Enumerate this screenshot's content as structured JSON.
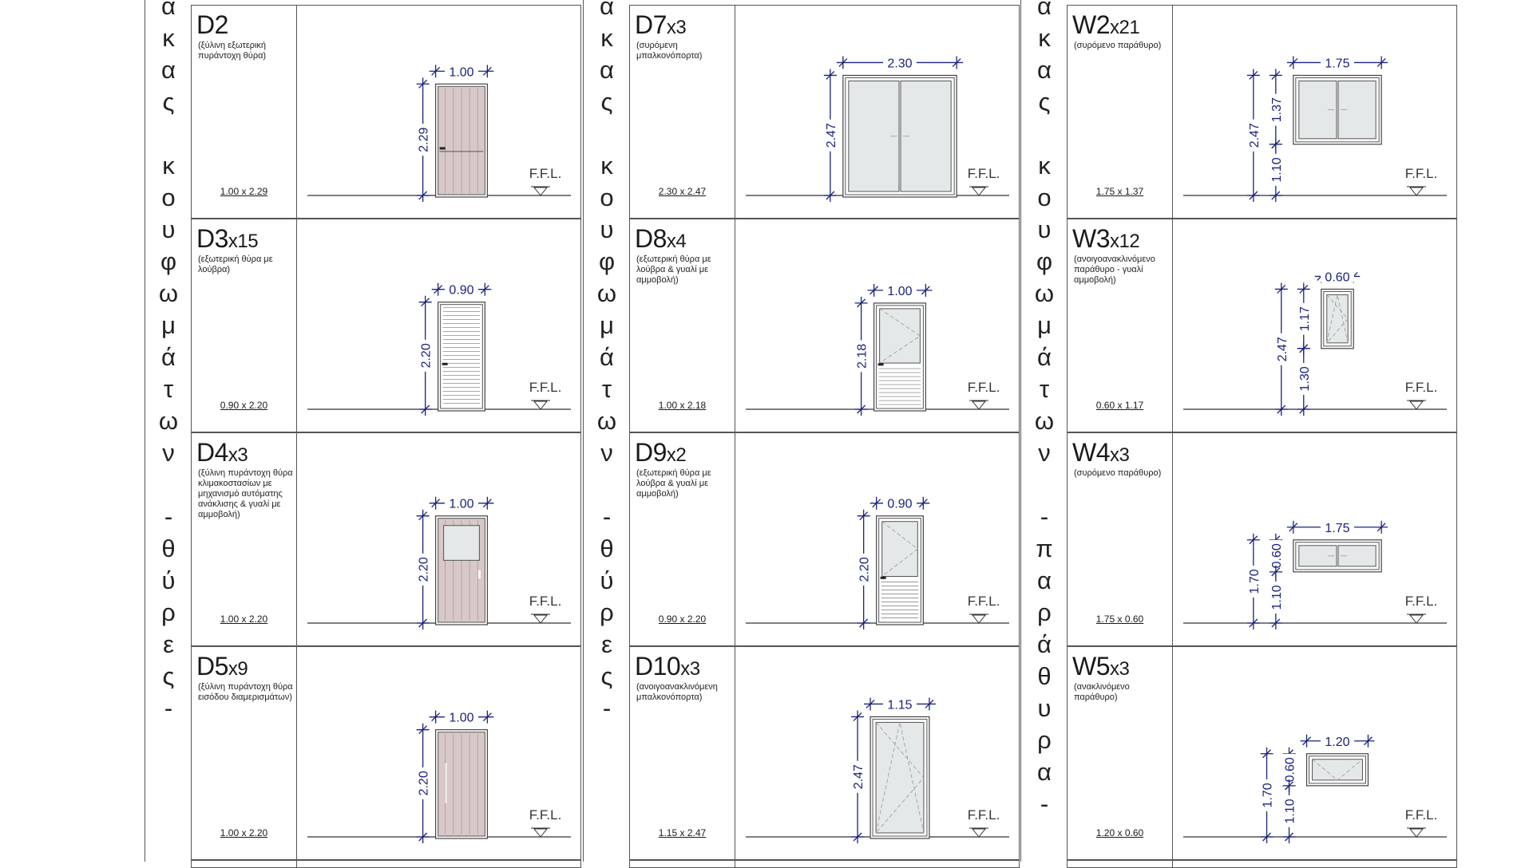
{
  "schedules": [
    {
      "title_letters": [
        "α",
        "κ",
        "α",
        "ς",
        "",
        "κ",
        "ο",
        "υ",
        "φ",
        "ω",
        "μ",
        "ά",
        "τ",
        "ω",
        "ν",
        "",
        "-",
        "θ",
        "ύ",
        "ρ",
        "ε",
        "ς",
        "-"
      ],
      "rows": [
        {
          "code": "D2",
          "qty": "",
          "desc": "(ξύλινη εξωτερική πυράντοχη θύρα)",
          "size": "1.00 x 2.29",
          "width_label": "1.00",
          "height_label": "2.29",
          "sill_label": "",
          "kind": "wood-door",
          "w": 1.0,
          "h": 2.29,
          "sill": 0
        },
        {
          "code": "D3",
          "qty": "x15",
          "desc": "(εξωτερική θύρα με λούβρα)",
          "size": "0.90 x 2.20",
          "width_label": "0.90",
          "height_label": "2.20",
          "sill_label": "",
          "kind": "louvre-door",
          "w": 0.9,
          "h": 2.2,
          "sill": 0
        },
        {
          "code": "D4",
          "qty": "x3",
          "desc": "(ξύλινη πυράντοχη θύρα κλιμακοστασίων με μηχανισμό αυτόματης ανάκλισης & γυαλί με αμμοβολή)",
          "size": "1.00 x 2.20",
          "width_label": "1.00",
          "height_label": "2.20",
          "sill_label": "",
          "kind": "wood-glass-door",
          "w": 1.0,
          "h": 2.2,
          "sill": 0
        },
        {
          "code": "D5",
          "qty": "x9",
          "desc": "(ξύλινη πυράντοχη θύρα εισόδου διαμερισμάτων)",
          "size": "1.00 x 2.20",
          "width_label": "1.00",
          "height_label": "2.20",
          "sill_label": "",
          "kind": "wood-door-handle",
          "w": 1.0,
          "h": 2.2,
          "sill": 0
        }
      ]
    },
    {
      "title_letters": [
        "α",
        "κ",
        "α",
        "ς",
        "",
        "κ",
        "ο",
        "υ",
        "φ",
        "ω",
        "μ",
        "ά",
        "τ",
        "ω",
        "ν",
        "",
        "-",
        "θ",
        "ύ",
        "ρ",
        "ε",
        "ς",
        "-"
      ],
      "rows": [
        {
          "code": "D7",
          "qty": "x3",
          "desc": "(συρόμενη μπαλκονόπορτα)",
          "size": "2.30 x 2.47",
          "width_label": "2.30",
          "height_label": "2.47",
          "sill_label": "",
          "kind": "sliding-door",
          "w": 2.3,
          "h": 2.47,
          "sill": 0
        },
        {
          "code": "D8",
          "qty": "x4",
          "desc": "(εξωτερική θύρα με λούβρα & γυαλί με αμμοβολή)",
          "size": "1.00 x 2.18",
          "width_label": "1.00",
          "height_label": "2.18",
          "sill_label": "",
          "kind": "glass-louvre-door",
          "w": 1.0,
          "h": 2.18,
          "sill": 0
        },
        {
          "code": "D9",
          "qty": "x2",
          "desc": "(εξωτερική θύρα με λούβρα & γυαλί με αμμοβολή)",
          "size": "0.90 x 2.20",
          "width_label": "0.90",
          "height_label": "2.20",
          "sill_label": "",
          "kind": "glass-louvre-door",
          "w": 0.9,
          "h": 2.2,
          "sill": 0
        },
        {
          "code": "D10",
          "qty": "x3",
          "desc": "(ανοιγοανακλινόμενη μπαλκονόπορτα)",
          "size": "1.15 x 2.47",
          "width_label": "1.15",
          "height_label": "2.47",
          "sill_label": "",
          "kind": "tilt-door",
          "w": 1.15,
          "h": 2.47,
          "sill": 0
        }
      ]
    },
    {
      "title_letters": [
        "α",
        "κ",
        "α",
        "ς",
        "",
        "κ",
        "ο",
        "υ",
        "φ",
        "ω",
        "μ",
        "ά",
        "τ",
        "ω",
        "ν",
        "",
        "-",
        "π",
        "α",
        "ρ",
        "ά",
        "θ",
        "υ",
        "ρ",
        "α",
        "-"
      ],
      "rows": [
        {
          "code": "W2",
          "qty": "x21",
          "desc": "(συρόμενο παράθυρο)",
          "size": "1.75 x 1.37",
          "width_label": "1.75",
          "height_label": "1.37",
          "sill_label": "1.10",
          "total_label": "2.47",
          "kind": "sliding-window",
          "w": 1.75,
          "h": 1.37,
          "sill": 1.1
        },
        {
          "code": "W3",
          "qty": "x12",
          "desc": "(ανοιγοανακλινόμενο παράθυρο - γυαλί αμμοβολή)",
          "size": "0.60 x 1.17",
          "width_label": "0.60",
          "height_label": "1.17",
          "sill_label": "1.30",
          "total_label": "2.47",
          "kind": "tilt-window",
          "w": 0.6,
          "h": 1.17,
          "sill": 1.3
        },
        {
          "code": "W4",
          "qty": "x3",
          "desc": "(συρόμενο παράθυρο)",
          "size": "1.75 x 0.60",
          "width_label": "1.75",
          "height_label": "0.60",
          "sill_label": "1.10",
          "total_label": "1.70",
          "kind": "sliding-window",
          "w": 1.75,
          "h": 0.6,
          "sill": 1.1
        },
        {
          "code": "W5",
          "qty": "x3",
          "desc": "(ανακλινόμενο παράθυρο)",
          "size": "1.20 x 0.60",
          "width_label": "1.20",
          "height_label": "0.60",
          "sill_label": "1.10",
          "total_label": "1.70",
          "kind": "hopper-window",
          "w": 1.2,
          "h": 0.6,
          "sill": 1.1
        }
      ]
    }
  ],
  "ffl_label": "F.F.L."
}
